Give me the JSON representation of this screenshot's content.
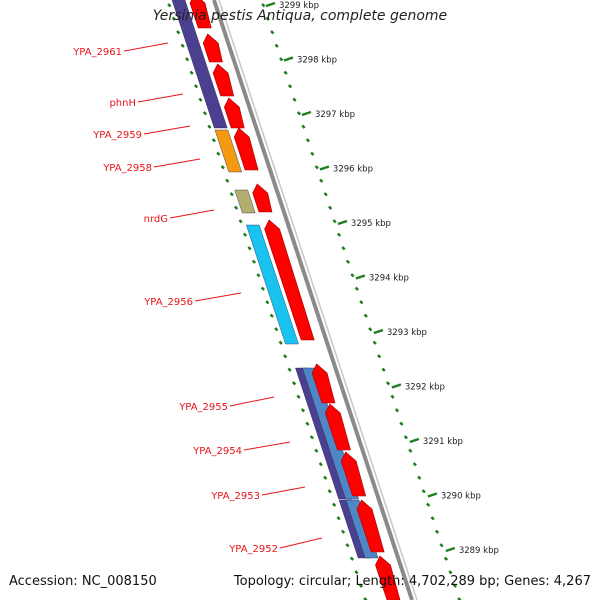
{
  "title": "Yersinia pestis Antiqua, complete genome",
  "footer": {
    "accession": "Accession: NC_008150",
    "topology": "Topology: circular; Length: 4,702,289 bp; Genes: 4,267"
  },
  "colors": {
    "gene_label": "#e8141a",
    "arrow": "#ff0000",
    "backbone": "#8a8a8a",
    "tick": "#1f7f1f",
    "blue_gene": "#4b3f8f",
    "cyan_gene": "#19c3ef",
    "orange_gene": "#f39a12",
    "khaki_gene": "#b3ad70",
    "steel_gene": "#4f86c6"
  },
  "ruler": {
    "unit": "kbp",
    "ticks": [
      "3299 kbp",
      "3298 kbp",
      "3297 kbp",
      "3296 kbp",
      "3295 kbp",
      "3294 kbp",
      "3293 kbp",
      "3292 kbp",
      "3291 kbp",
      "3290 kbp",
      "3289 kbp"
    ]
  },
  "genes": [
    {
      "label": "YPA_2961",
      "color": "#4b3f8f"
    },
    {
      "label": "phnH",
      "color": "#4b3f8f"
    },
    {
      "label": "YPA_2959",
      "color": "#4b3f8f"
    },
    {
      "label": "YPA_2958",
      "color": "#f39a12"
    },
    {
      "label": "nrdG",
      "color": "#b3ad70"
    },
    {
      "label": "YPA_2956",
      "color": "#19c3ef"
    },
    {
      "label": "YPA_2955",
      "color": "#4b3f8f"
    },
    {
      "label": "YPA_2954",
      "color": "#4b3f8f"
    },
    {
      "label": "YPA_2953",
      "color": "#4b3f8f"
    },
    {
      "label": "YPA_2952",
      "color": "#4b3f8f"
    }
  ]
}
